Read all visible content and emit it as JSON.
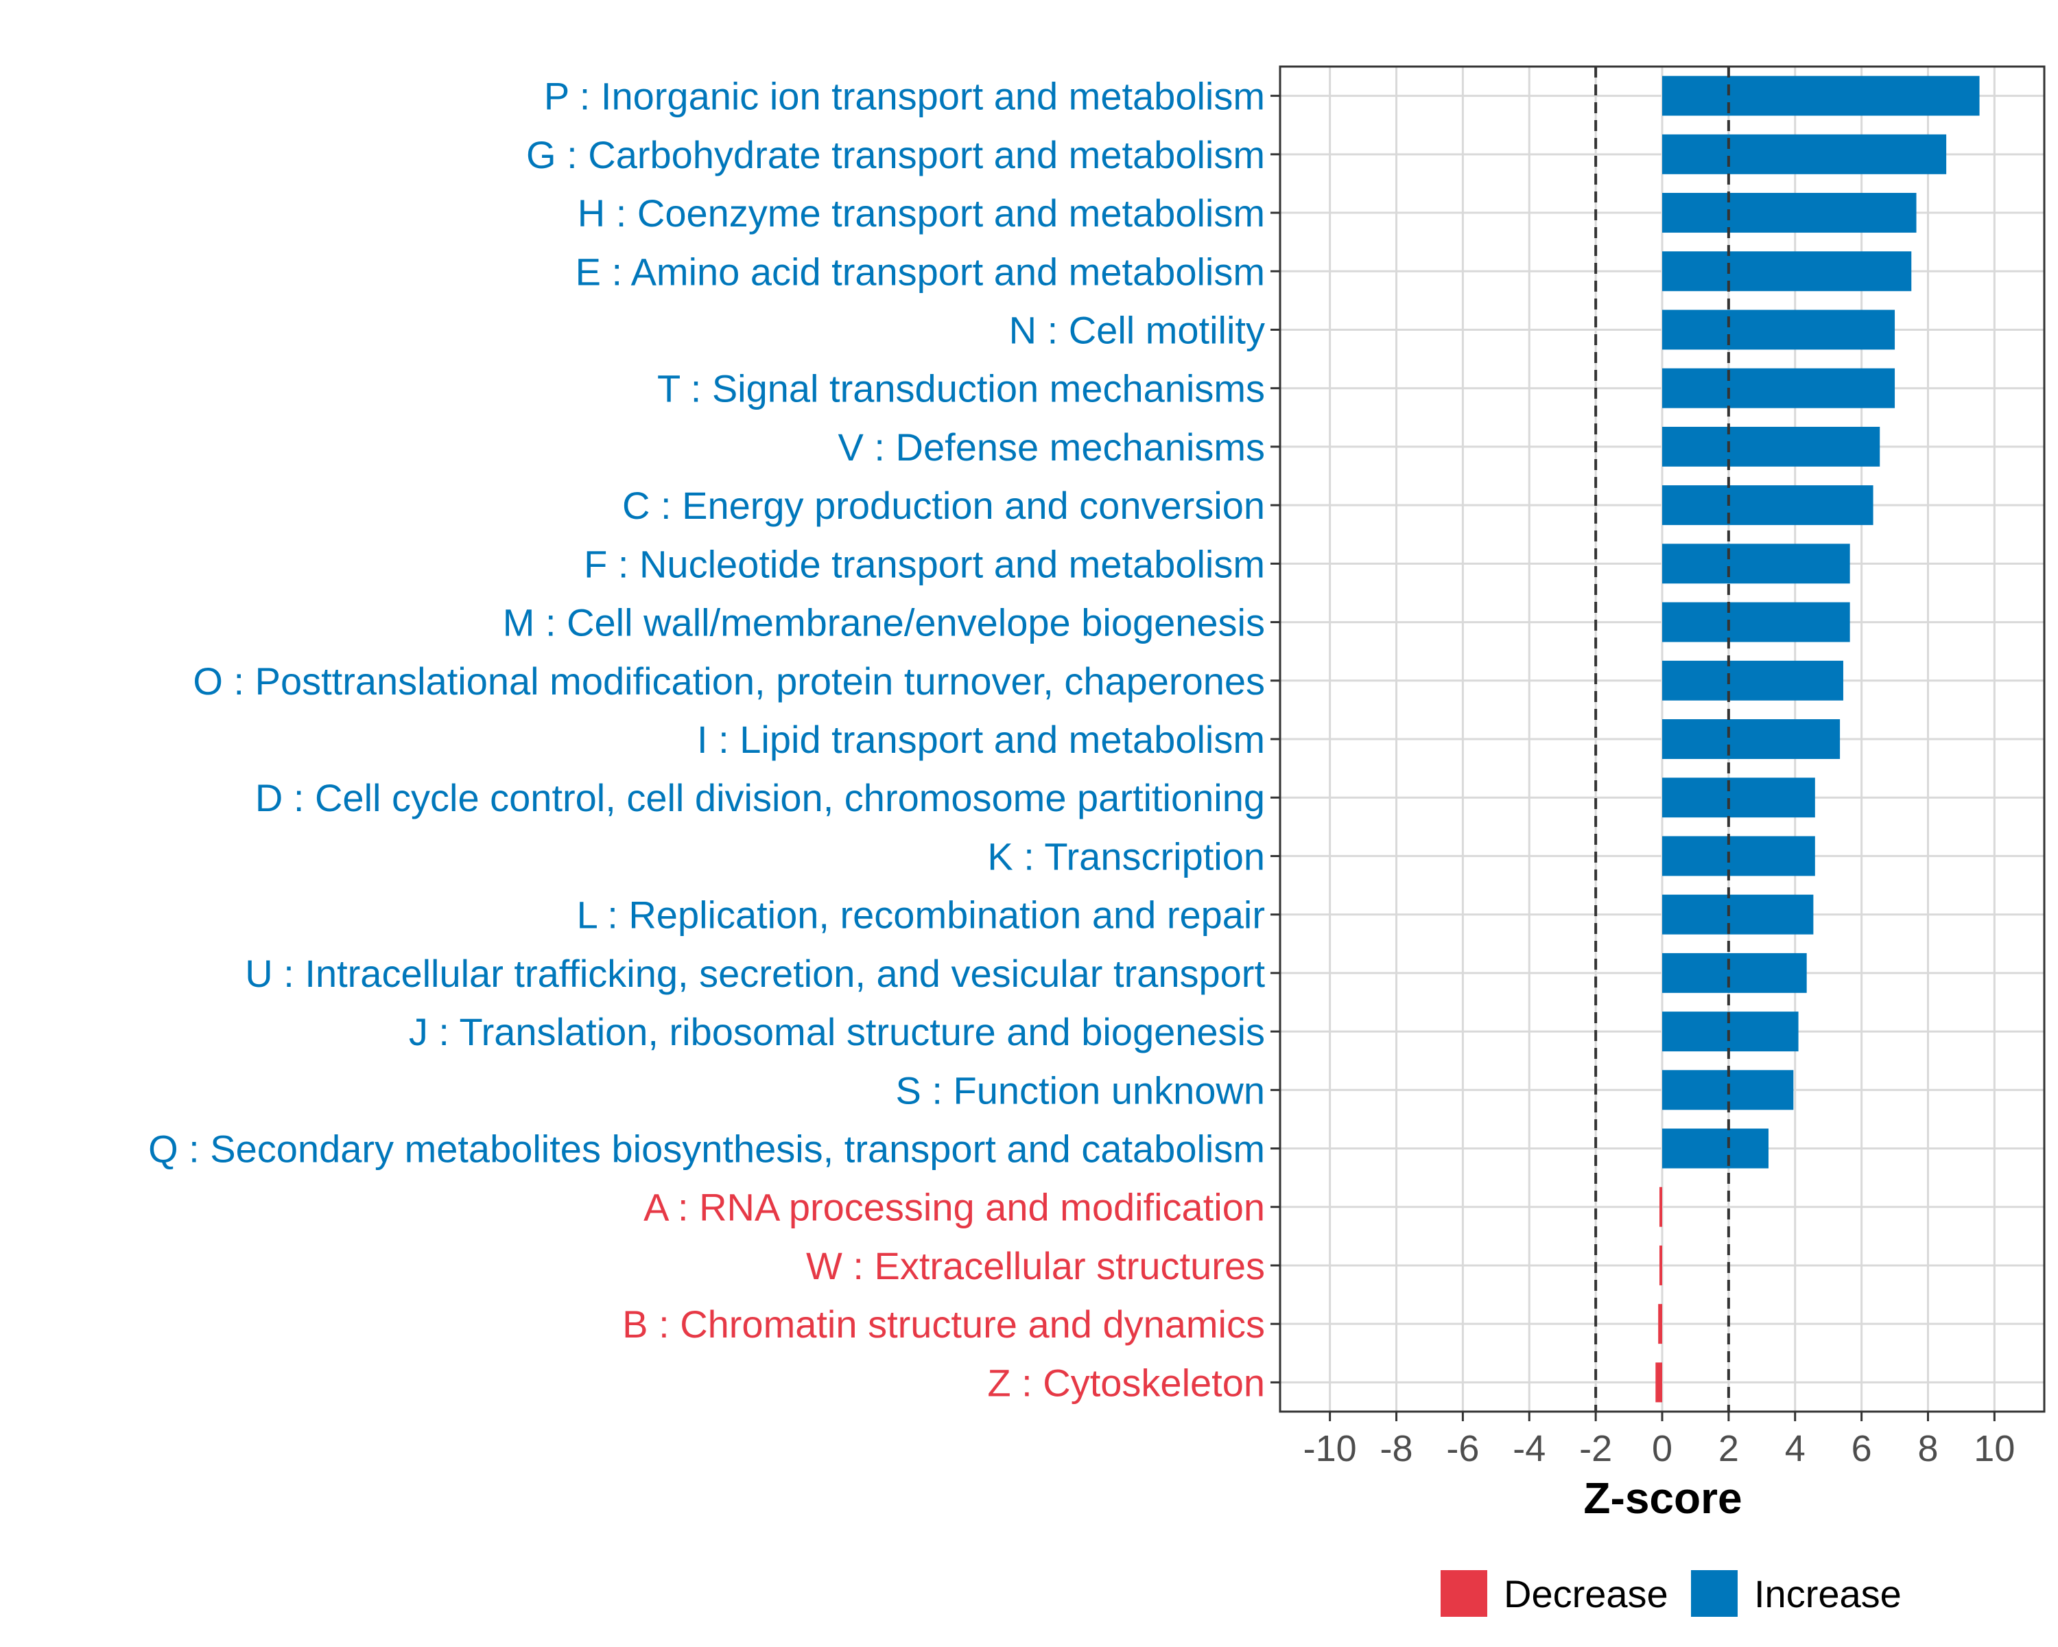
{
  "chart_data": {
    "type": "bar",
    "orientation": "horizontal",
    "title": "",
    "xlabel": "Z-score",
    "ylabel": "",
    "xlim": [
      -11.5,
      11.5
    ],
    "xticks": [
      -10,
      -8,
      -6,
      -4,
      -2,
      0,
      2,
      4,
      6,
      8,
      10
    ],
    "xtick_labels": [
      "-10",
      "-8",
      "-6",
      "-4",
      "-2",
      "0",
      "2",
      "4",
      "6",
      "8",
      "10"
    ],
    "threshold_lines": [
      -2,
      2
    ],
    "grid": true,
    "categories": [
      "P : Inorganic ion transport and metabolism",
      "G : Carbohydrate transport and metabolism",
      "H : Coenzyme transport and metabolism",
      "E : Amino acid transport and metabolism",
      "N : Cell motility",
      "T : Signal transduction mechanisms",
      "V : Defense mechanisms",
      "C : Energy production and conversion",
      "F : Nucleotide transport and metabolism",
      "M : Cell wall/membrane/envelope biogenesis",
      "O : Posttranslational modification, protein turnover, chaperones",
      "I : Lipid transport and metabolism",
      "D : Cell cycle control, cell division, chromosome partitioning",
      "K : Transcription",
      "L : Replication, recombination and repair",
      "U : Intracellular trafficking, secretion, and vesicular transport",
      "J : Translation, ribosomal structure and biogenesis",
      "S : Function unknown",
      "Q : Secondary metabolites biosynthesis, transport and catabolism",
      "A : RNA processing and modification",
      "W : Extracellular structures",
      "B : Chromatin structure and dynamics",
      "Z : Cytoskeleton"
    ],
    "values": [
      9.55,
      8.55,
      7.65,
      7.5,
      7.0,
      7.0,
      6.55,
      6.35,
      5.65,
      5.65,
      5.45,
      5.35,
      4.6,
      4.6,
      4.55,
      4.35,
      4.1,
      3.95,
      3.2,
      -0.02,
      -0.06,
      -0.12,
      -0.2
    ],
    "groups": [
      "Increase",
      "Increase",
      "Increase",
      "Increase",
      "Increase",
      "Increase",
      "Increase",
      "Increase",
      "Increase",
      "Increase",
      "Increase",
      "Increase",
      "Increase",
      "Increase",
      "Increase",
      "Increase",
      "Increase",
      "Increase",
      "Increase",
      "Decrease",
      "Decrease",
      "Decrease",
      "Decrease"
    ],
    "legend": [
      {
        "name": "Decrease",
        "color": "#e63946"
      },
      {
        "name": "Increase",
        "color": "#0077bb"
      }
    ],
    "legend_position": "bottom"
  },
  "colors": {
    "increase": "#0077bb",
    "decrease": "#e63946",
    "grid": "#d9d9d9",
    "panel_border": "#333333",
    "threshold": "#333333"
  }
}
